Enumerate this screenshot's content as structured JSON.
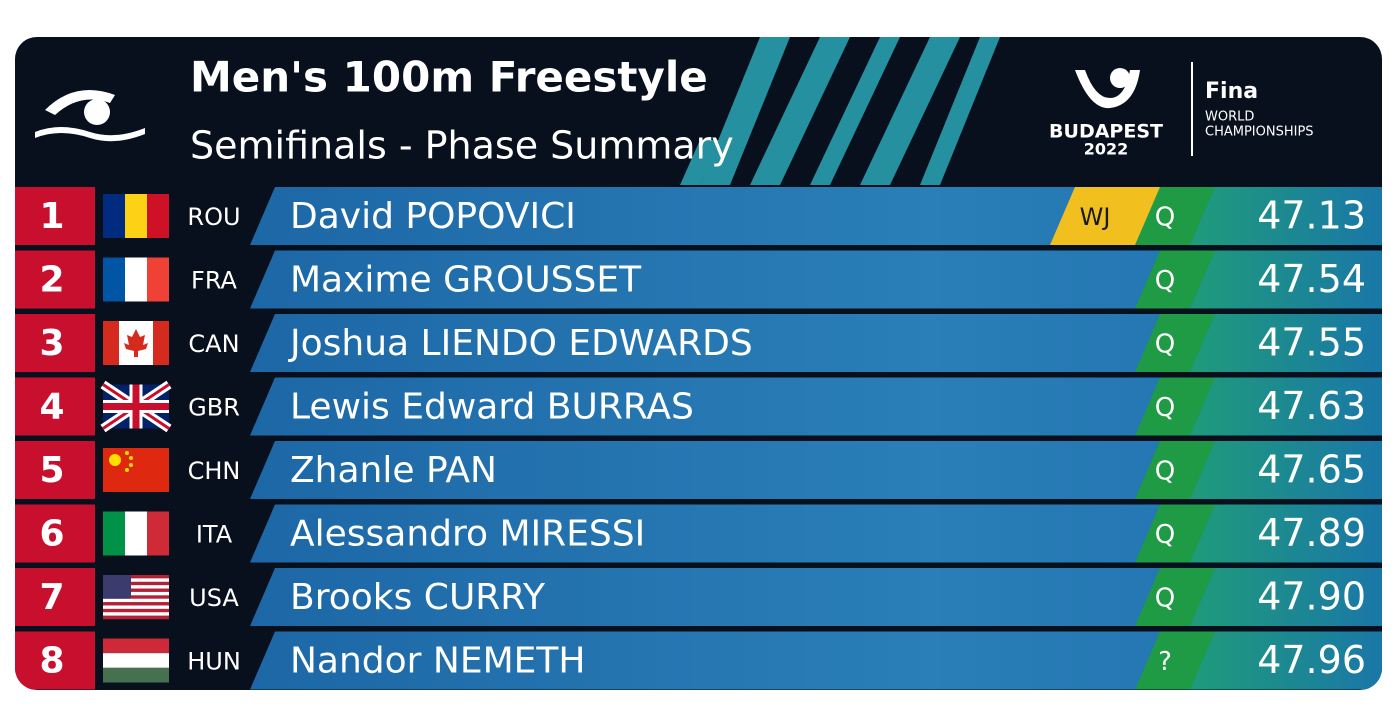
{
  "header": {
    "title": "Men's 100m Freestyle",
    "subtitle": "Semifinals - Phase Summary",
    "logo": {
      "city": "BUDAPEST",
      "year": "2022",
      "brand": "Fina",
      "line1": "WORLD",
      "line2": "CHAMPIONSHIPS"
    }
  },
  "table": {
    "rows": [
      {
        "rank": "1",
        "country": "ROU",
        "name": "David POPOVICI",
        "record": "WJ",
        "qual": "Q",
        "time": "47.13"
      },
      {
        "rank": "2",
        "country": "FRA",
        "name": "Maxime GROUSSET",
        "qual": "Q",
        "time": "47.54"
      },
      {
        "rank": "3",
        "country": "CAN",
        "name": "Joshua LIENDO EDWARDS",
        "qual": "Q",
        "time": "47.55"
      },
      {
        "rank": "4",
        "country": "GBR",
        "name": "Lewis Edward BURRAS",
        "qual": "Q",
        "time": "47.63"
      },
      {
        "rank": "5",
        "country": "CHN",
        "name": "Zhanle PAN",
        "qual": "Q",
        "time": "47.65"
      },
      {
        "rank": "6",
        "country": "ITA",
        "name": "Alessandro MIRESSI",
        "qual": "Q",
        "time": "47.89"
      },
      {
        "rank": "7",
        "country": "USA",
        "name": "Brooks CURRY",
        "qual": "Q",
        "time": "47.90"
      },
      {
        "rank": "8",
        "country": "HUN",
        "name": "Nandor NEMETH",
        "qual": "?",
        "time": "47.96"
      }
    ]
  }
}
